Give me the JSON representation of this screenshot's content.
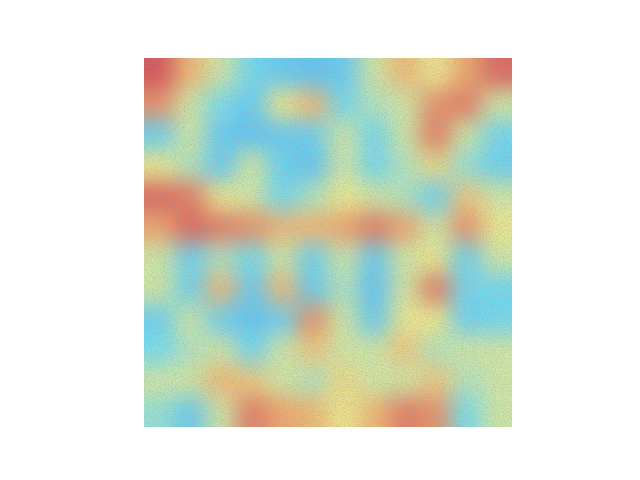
{
  "chart_data": {
    "type": "heatmap",
    "tick_labels": false,
    "cells": [
      [
        0.95,
        0.7,
        0.5,
        0.3,
        0.2,
        0.15,
        0.2,
        0.5,
        0.7,
        0.55,
        0.75,
        0.9
      ],
      [
        0.8,
        0.5,
        0.35,
        0.2,
        0.55,
        0.7,
        0.3,
        0.45,
        0.5,
        0.8,
        0.85,
        0.5
      ],
      [
        0.25,
        0.5,
        0.2,
        0.15,
        0.2,
        0.25,
        0.5,
        0.3,
        0.5,
        0.85,
        0.5,
        0.3
      ],
      [
        0.55,
        0.45,
        0.2,
        0.5,
        0.25,
        0.15,
        0.5,
        0.3,
        0.45,
        0.6,
        0.4,
        0.25
      ],
      [
        0.9,
        0.85,
        0.55,
        0.5,
        0.3,
        0.45,
        0.55,
        0.5,
        0.45,
        0.25,
        0.65,
        0.5
      ],
      [
        0.75,
        0.9,
        0.85,
        0.8,
        0.7,
        0.7,
        0.75,
        0.85,
        0.75,
        0.5,
        0.8,
        0.55
      ],
      [
        0.5,
        0.25,
        0.45,
        0.3,
        0.5,
        0.25,
        0.5,
        0.2,
        0.5,
        0.55,
        0.25,
        0.5
      ],
      [
        0.5,
        0.25,
        0.7,
        0.2,
        0.7,
        0.2,
        0.45,
        0.15,
        0.5,
        0.85,
        0.3,
        0.3
      ],
      [
        0.25,
        0.5,
        0.25,
        0.15,
        0.25,
        0.8,
        0.5,
        0.2,
        0.55,
        0.55,
        0.25,
        0.3
      ],
      [
        0.35,
        0.45,
        0.5,
        0.3,
        0.5,
        0.65,
        0.5,
        0.5,
        0.65,
        0.45,
        0.5,
        0.5
      ],
      [
        0.5,
        0.5,
        0.7,
        0.65,
        0.5,
        0.45,
        0.6,
        0.5,
        0.5,
        0.65,
        0.45,
        0.5
      ],
      [
        0.4,
        0.2,
        0.5,
        0.85,
        0.75,
        0.7,
        0.55,
        0.7,
        0.85,
        0.8,
        0.35,
        0.5
      ]
    ]
  }
}
